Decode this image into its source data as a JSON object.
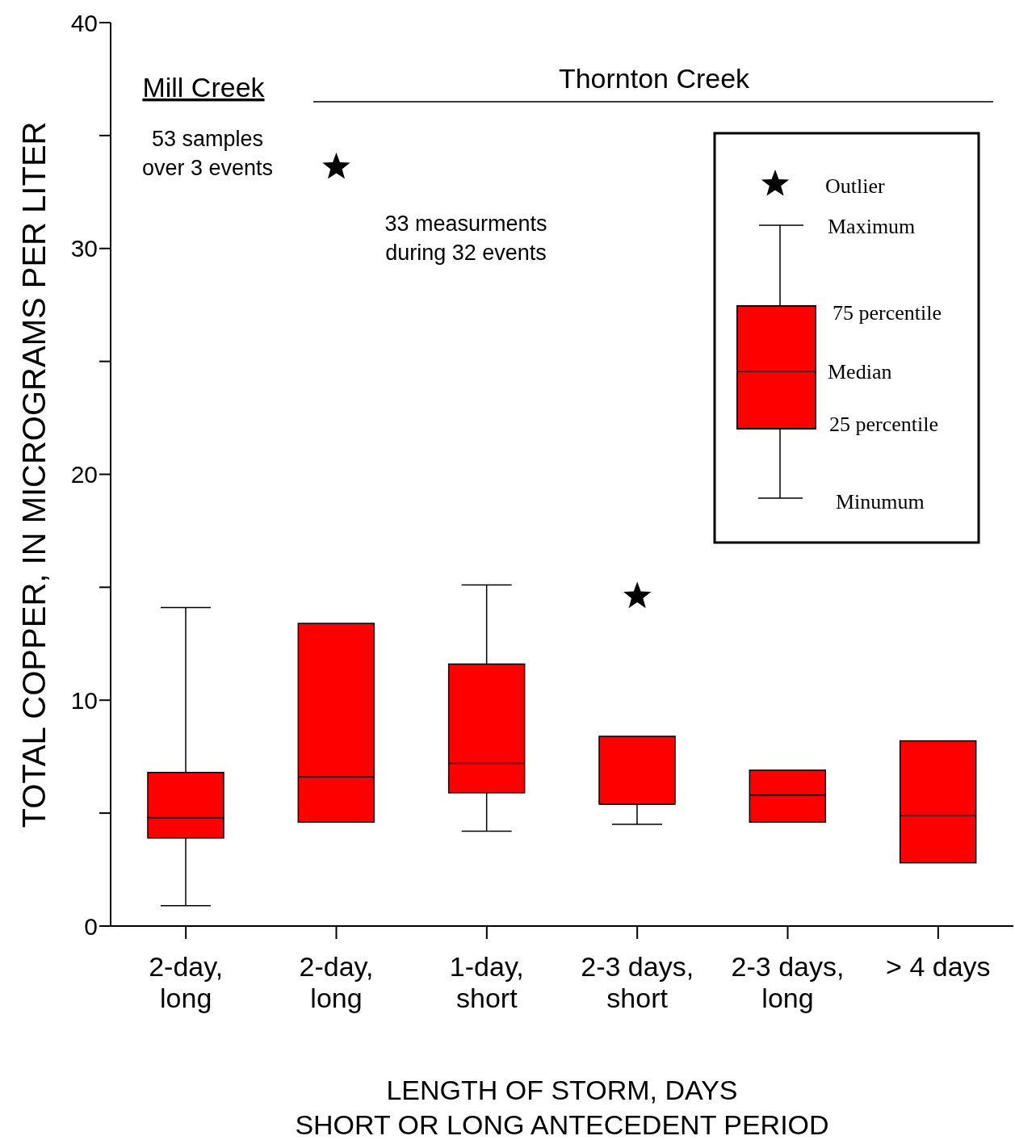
{
  "chart_data": {
    "type": "box",
    "xlabel": "LENGTH OF STORM, DAYS\nSHORT OR LONG ANTECEDENT PERIOD",
    "ylabel": "TOTAL COPPER, IN MICROGRAMS PER LITER",
    "categories": [
      "2-day,\nlong",
      "2-day,\nlong",
      "1-day,\nshort",
      "2-3 days,\nshort",
      "2-3 days,\nlong",
      "> 4 days"
    ],
    "series": [
      {
        "color": "#ff0000",
        "boxes": [
          {
            "low": 0.9,
            "q1": 3.9,
            "median": 4.8,
            "q3": 6.8,
            "high": 14.1
          },
          {
            "low": 4.6,
            "q1": 4.6,
            "median": 6.6,
            "q3": 13.4,
            "high": 13.4,
            "outliers": [
              33.6
            ]
          },
          {
            "low": 4.2,
            "q1": 5.9,
            "median": 7.2,
            "q3": 11.6,
            "high": 15.1
          },
          {
            "low": 4.5,
            "q1": 5.4,
            "median": 5.4,
            "q3": 8.4,
            "high": 8.4,
            "outliers": [
              14.6
            ]
          },
          {
            "low": 4.6,
            "q1": 4.6,
            "median": 5.8,
            "q3": 6.9,
            "high": 6.9
          },
          {
            "low": 2.8,
            "q1": 2.8,
            "median": 4.9,
            "q3": 8.2,
            "high": 8.2
          }
        ]
      }
    ],
    "ylim": [
      0,
      40
    ],
    "yticks": [
      0,
      {
        "value": 5,
        "label": null
      },
      10,
      {
        "value": 15,
        "label": null
      },
      20,
      {
        "value": 25,
        "label": null
      },
      30,
      {
        "value": 35,
        "label": null
      },
      40
    ],
    "annotations": [
      "Mill Creek",
      "Thornton Creek",
      "53 samples\nover 3 events",
      "33 measurments\nduring 32 events",
      "Outlier",
      "Maximum",
      "75 percentile",
      "Median",
      "25 percentile",
      "Minumum"
    ]
  }
}
